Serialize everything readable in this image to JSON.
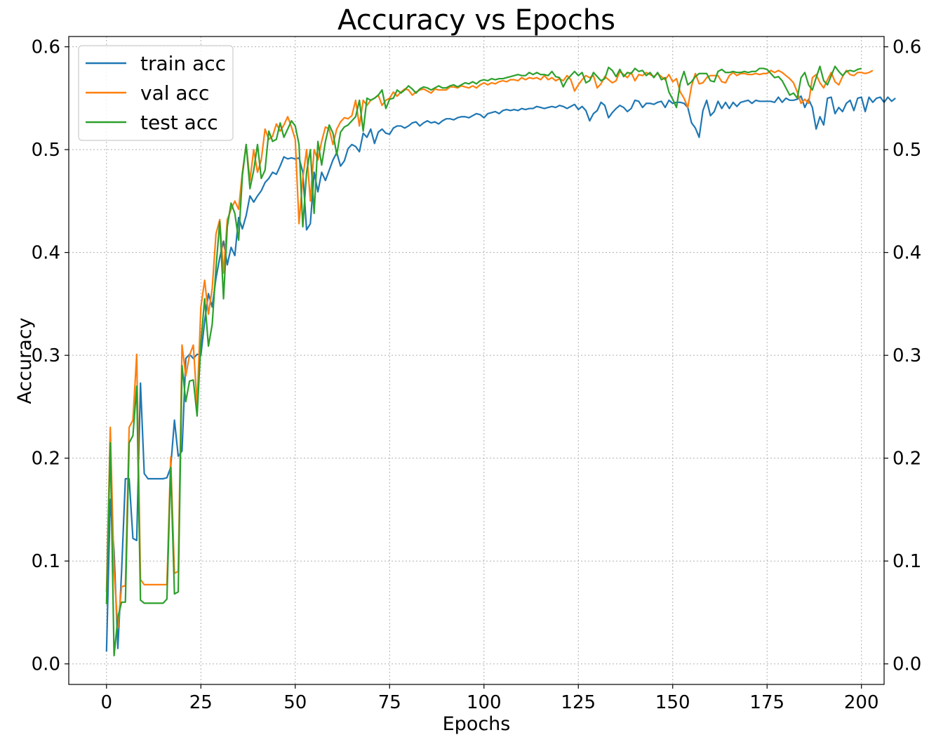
{
  "chart_data": {
    "type": "line",
    "title": "Accuracy vs Epochs",
    "xlabel": "Epochs",
    "ylabel": "Accuracy",
    "xlim": [
      -10,
      206
    ],
    "ylim": [
      -0.02,
      0.61
    ],
    "xticks": [
      "0",
      "25",
      "50",
      "75",
      "100",
      "125",
      "150",
      "175",
      "200"
    ],
    "yticks": [
      "0.0",
      "0.1",
      "0.2",
      "0.3",
      "0.4",
      "0.5",
      "0.6"
    ],
    "grid": true,
    "legend_position": "top-left",
    "secondary_y_axis": true,
    "x_step": 1,
    "series": [
      {
        "name": "train acc",
        "color": "#1f77b4",
        "values": [
          0.012,
          0.16,
          0.11,
          0.015,
          0.09,
          0.18,
          0.18,
          0.122,
          0.12,
          0.273,
          0.185,
          0.18,
          0.18,
          0.18,
          0.18,
          0.18,
          0.181,
          0.191,
          0.237,
          0.202,
          0.207,
          0.297,
          0.301,
          0.297,
          0.301,
          0.3,
          0.333,
          0.36,
          0.347,
          0.375,
          0.395,
          0.411,
          0.388,
          0.405,
          0.397,
          0.434,
          0.423,
          0.436,
          0.455,
          0.449,
          0.455,
          0.46,
          0.468,
          0.472,
          0.478,
          0.476,
          0.484,
          0.493,
          0.491,
          0.492,
          0.491,
          0.492,
          0.478,
          0.422,
          0.428,
          0.478,
          0.459,
          0.478,
          0.47,
          0.48,
          0.49,
          0.497,
          0.484,
          0.489,
          0.501,
          0.505,
          0.503,
          0.498,
          0.516,
          0.512,
          0.52,
          0.506,
          0.517,
          0.52,
          0.516,
          0.515,
          0.521,
          0.523,
          0.523,
          0.521,
          0.523,
          0.526,
          0.527,
          0.523,
          0.526,
          0.528,
          0.526,
          0.527,
          0.525,
          0.528,
          0.53,
          0.53,
          0.529,
          0.531,
          0.532,
          0.532,
          0.531,
          0.533,
          0.535,
          0.534,
          0.531,
          0.535,
          0.536,
          0.537,
          0.535,
          0.538,
          0.539,
          0.538,
          0.539,
          0.538,
          0.54,
          0.539,
          0.54,
          0.54,
          0.542,
          0.541,
          0.54,
          0.541,
          0.542,
          0.541,
          0.543,
          0.542,
          0.54,
          0.542,
          0.544,
          0.539,
          0.542,
          0.538,
          0.528,
          0.535,
          0.538,
          0.546,
          0.543,
          0.531,
          0.536,
          0.54,
          0.543,
          0.541,
          0.537,
          0.54,
          0.548,
          0.547,
          0.541,
          0.545,
          0.545,
          0.544,
          0.546,
          0.547,
          0.541,
          0.548,
          0.545,
          0.546,
          0.546,
          0.545,
          0.541,
          0.526,
          0.521,
          0.512,
          0.538,
          0.548,
          0.533,
          0.537,
          0.547,
          0.54,
          0.546,
          0.54,
          0.546,
          0.542,
          0.546,
          0.547,
          0.548,
          0.545,
          0.548,
          0.547,
          0.547,
          0.547,
          0.547,
          0.546,
          0.551,
          0.546,
          0.55,
          0.548,
          0.548,
          0.549,
          0.552,
          0.541,
          0.549,
          0.541,
          0.52,
          0.532,
          0.524,
          0.55,
          0.551,
          0.535,
          0.541,
          0.537,
          0.545,
          0.548,
          0.538,
          0.55,
          0.551,
          0.537,
          0.551,
          0.546,
          0.55,
          0.551,
          0.546,
          0.551,
          0.547,
          0.55
        ]
      },
      {
        "name": "val acc",
        "color": "#ff7f0e",
        "values": [
          0.07,
          0.23,
          0.09,
          0.035,
          0.075,
          0.076,
          0.23,
          0.237,
          0.301,
          0.082,
          0.077,
          0.077,
          0.077,
          0.077,
          0.077,
          0.077,
          0.077,
          0.201,
          0.088,
          0.09,
          0.31,
          0.28,
          0.3,
          0.31,
          0.252,
          0.347,
          0.373,
          0.34,
          0.365,
          0.418,
          0.432,
          0.38,
          0.432,
          0.442,
          0.45,
          0.442,
          0.478,
          0.505,
          0.47,
          0.5,
          0.478,
          0.49,
          0.52,
          0.51,
          0.513,
          0.525,
          0.518,
          0.524,
          0.532,
          0.522,
          0.51,
          0.428,
          0.472,
          0.5,
          0.45,
          0.5,
          0.49,
          0.508,
          0.522,
          0.52,
          0.505,
          0.52,
          0.527,
          0.531,
          0.53,
          0.533,
          0.548,
          0.523,
          0.548,
          0.543,
          0.548,
          0.55,
          0.553,
          0.543,
          0.548,
          0.55,
          0.556,
          0.552,
          0.556,
          0.559,
          0.558,
          0.553,
          0.556,
          0.558,
          0.559,
          0.557,
          0.555,
          0.559,
          0.558,
          0.558,
          0.558,
          0.561,
          0.561,
          0.56,
          0.562,
          0.561,
          0.56,
          0.562,
          0.56,
          0.563,
          0.565,
          0.563,
          0.565,
          0.564,
          0.566,
          0.567,
          0.566,
          0.568,
          0.568,
          0.567,
          0.57,
          0.568,
          0.57,
          0.569,
          0.57,
          0.568,
          0.572,
          0.568,
          0.57,
          0.567,
          0.569,
          0.567,
          0.572,
          0.568,
          0.557,
          0.563,
          0.568,
          0.572,
          0.57,
          0.572,
          0.56,
          0.564,
          0.571,
          0.568,
          0.565,
          0.567,
          0.576,
          0.573,
          0.57,
          0.575,
          0.567,
          0.573,
          0.572,
          0.575,
          0.573,
          0.571,
          0.574,
          0.571,
          0.568,
          0.573,
          0.566,
          0.569,
          0.556,
          0.55,
          0.541,
          0.562,
          0.574,
          0.564,
          0.565,
          0.57,
          0.572,
          0.572,
          0.572,
          0.566,
          0.565,
          0.572,
          0.575,
          0.572,
          0.574,
          0.574,
          0.573,
          0.573,
          0.574,
          0.573,
          0.574,
          0.574,
          0.577,
          0.575,
          0.577,
          0.575,
          0.572,
          0.569,
          0.565,
          0.556,
          0.545,
          0.549,
          0.545,
          0.57,
          0.573,
          0.565,
          0.56,
          0.568,
          0.575,
          0.566,
          0.563,
          0.571,
          0.577,
          0.573,
          0.572,
          0.575,
          0.575,
          0.574,
          0.575,
          0.577
        ]
      },
      {
        "name": "test acc",
        "color": "#2ca02c",
        "values": [
          0.058,
          0.215,
          0.008,
          0.045,
          0.06,
          0.06,
          0.215,
          0.222,
          0.27,
          0.062,
          0.059,
          0.059,
          0.059,
          0.059,
          0.059,
          0.059,
          0.063,
          0.191,
          0.068,
          0.07,
          0.29,
          0.255,
          0.275,
          0.276,
          0.241,
          0.312,
          0.355,
          0.309,
          0.33,
          0.385,
          0.43,
          0.355,
          0.425,
          0.448,
          0.438,
          0.412,
          0.475,
          0.505,
          0.462,
          0.48,
          0.505,
          0.472,
          0.48,
          0.518,
          0.508,
          0.51,
          0.526,
          0.512,
          0.52,
          0.528,
          0.523,
          0.505,
          0.425,
          0.478,
          0.5,
          0.438,
          0.508,
          0.485,
          0.508,
          0.524,
          0.516,
          0.495,
          0.517,
          0.522,
          0.524,
          0.528,
          0.532,
          0.548,
          0.518,
          0.55,
          0.548,
          0.55,
          0.553,
          0.558,
          0.54,
          0.549,
          0.55,
          0.558,
          0.555,
          0.558,
          0.562,
          0.559,
          0.555,
          0.559,
          0.561,
          0.56,
          0.558,
          0.56,
          0.562,
          0.56,
          0.56,
          0.562,
          0.563,
          0.561,
          0.563,
          0.565,
          0.564,
          0.566,
          0.564,
          0.567,
          0.568,
          0.567,
          0.569,
          0.568,
          0.569,
          0.569,
          0.57,
          0.571,
          0.572,
          0.573,
          0.572,
          0.572,
          0.575,
          0.573,
          0.575,
          0.573,
          0.573,
          0.572,
          0.576,
          0.571,
          0.57,
          0.561,
          0.568,
          0.572,
          0.576,
          0.572,
          0.575,
          0.565,
          0.567,
          0.575,
          0.571,
          0.567,
          0.569,
          0.58,
          0.577,
          0.571,
          0.578,
          0.571,
          0.575,
          0.574,
          0.579,
          0.576,
          0.577,
          0.572,
          0.575,
          0.57,
          0.575,
          0.568,
          0.57,
          0.556,
          0.549,
          0.541,
          0.565,
          0.576,
          0.563,
          0.566,
          0.571,
          0.574,
          0.574,
          0.574,
          0.567,
          0.566,
          0.576,
          0.578,
          0.575,
          0.575,
          0.576,
          0.575,
          0.575,
          0.576,
          0.575,
          0.576,
          0.576,
          0.579,
          0.579,
          0.578,
          0.574,
          0.57,
          0.571,
          0.567,
          0.56,
          0.553,
          0.555,
          0.55,
          0.57,
          0.575,
          0.563,
          0.558,
          0.57,
          0.581,
          0.567,
          0.563,
          0.572,
          0.581,
          0.576,
          0.572,
          0.576,
          0.577,
          0.576,
          0.578,
          0.579
        ]
      }
    ]
  }
}
